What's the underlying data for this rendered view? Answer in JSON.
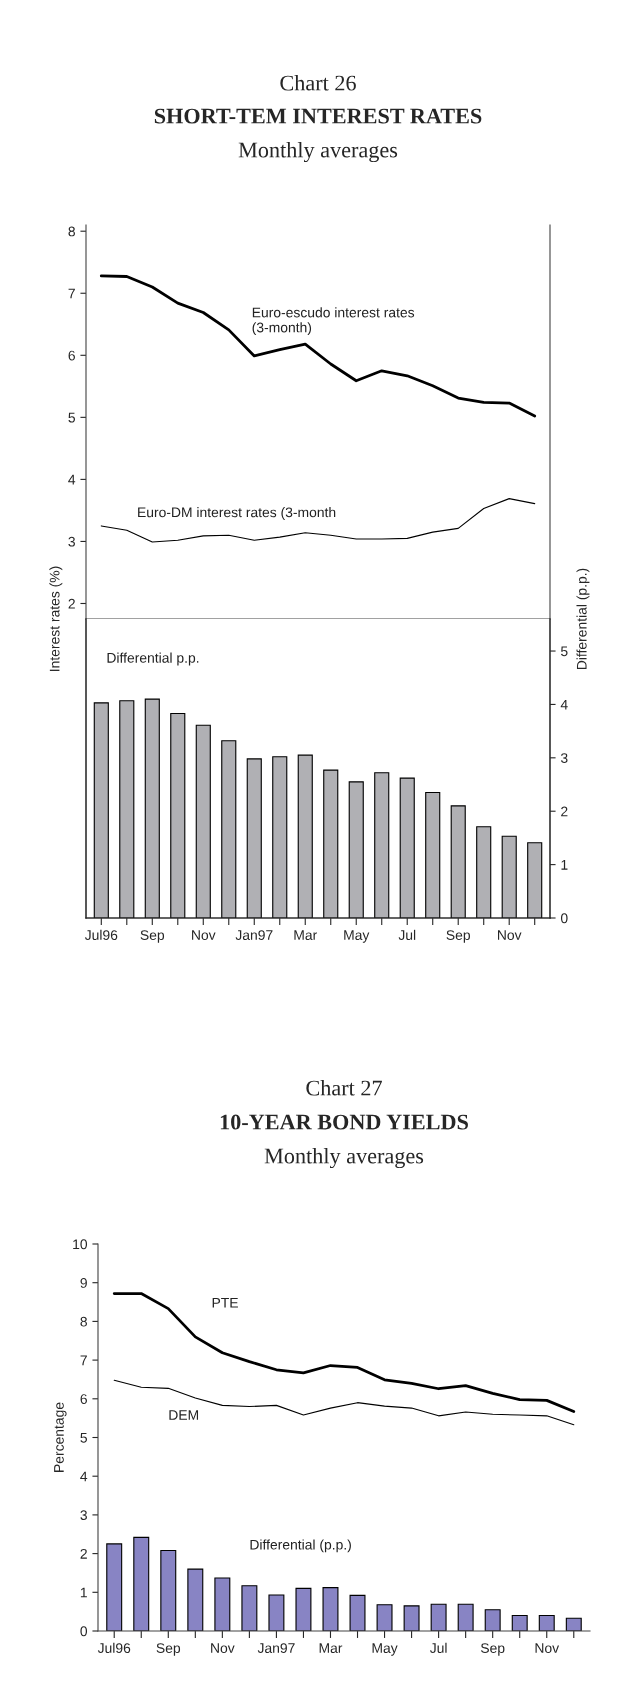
{
  "chart_data": [
    {
      "type": "line",
      "title": "Chart 26",
      "subtitle": "SHORT-TEM INTEREST RATES",
      "annotations": [
        "Monthly averages"
      ],
      "ylabel": "Interest rates (%)",
      "tick_labels": "y",
      "ylim": [
        1.75,
        8.1
      ],
      "yticks": [
        2,
        3,
        4,
        5,
        6,
        7,
        8
      ],
      "series": [
        {
          "name": "Euro-escudo interest rates\n(3-month)",
          "color": "#000000",
          "values": [
            7.28,
            7.27,
            7.1,
            6.84,
            6.69,
            6.41,
            5.99,
            6.09,
            6.18,
            5.86,
            5.59,
            5.75,
            5.67,
            5.51,
            5.31,
            5.24,
            5.23,
            5.02
          ]
        },
        {
          "name": "Euro-DM interest rates (3-month",
          "color": "#000000",
          "values": [
            3.25,
            3.18,
            2.99,
            3.02,
            3.09,
            3.1,
            3.02,
            3.07,
            3.14,
            3.1,
            3.04,
            3.04,
            3.05,
            3.15,
            3.21,
            3.53,
            3.69,
            3.61
          ]
        }
      ]
    },
    {
      "type": "bar",
      "y2label": "Differential (p.p.)",
      "categories": [
        "Jul96",
        null,
        "Sep",
        null,
        "Nov",
        null,
        "Jan97",
        null,
        "Mar",
        null,
        "May",
        null,
        "Jul",
        null,
        "Sep",
        null,
        "Nov",
        null
      ],
      "y2lim": [
        0,
        5.6
      ],
      "y2ticks": [
        0,
        1,
        2,
        3,
        4,
        5
      ],
      "series": [
        {
          "name": "Differential p.p.",
          "color": "#b0b0b4",
          "axis": "y2",
          "values": [
            4.03,
            4.07,
            4.1,
            3.83,
            3.61,
            3.32,
            2.98,
            3.02,
            3.05,
            2.77,
            2.55,
            2.72,
            2.62,
            2.35,
            2.1,
            1.71,
            1.53,
            1.41
          ]
        }
      ]
    },
    {
      "type": "line",
      "title": "Chart 27",
      "subtitle": "10-YEAR BOND YIELDS",
      "annotations": [
        "Monthly averages"
      ],
      "ylabel": "Percentage",
      "categories": [
        "Jul96",
        null,
        "Sep",
        null,
        "Nov",
        null,
        "Jan97",
        null,
        "Mar",
        null,
        "May",
        null,
        "Jul",
        null,
        "Sep",
        null,
        "Nov",
        null
      ],
      "ylim": [
        0,
        10
      ],
      "yticks": [
        0,
        1,
        2,
        3,
        4,
        5,
        6,
        7,
        8,
        9,
        10
      ],
      "series": [
        {
          "name": "PTE",
          "color": "#000000",
          "values": [
            8.72,
            8.72,
            8.33,
            7.6,
            7.19,
            6.96,
            6.75,
            6.67,
            6.86,
            6.81,
            6.49,
            6.4,
            6.26,
            6.34,
            6.14,
            5.98,
            5.96,
            5.67
          ]
        },
        {
          "name": "DEM",
          "color": "#000000",
          "values": [
            6.48,
            6.3,
            6.27,
            6.02,
            5.83,
            5.8,
            5.83,
            5.58,
            5.76,
            5.9,
            5.81,
            5.76,
            5.56,
            5.66,
            5.6,
            5.58,
            5.56,
            5.33
          ]
        },
        {
          "name": "Differential (p.p.)",
          "type": "bar",
          "color": "#8884c4",
          "values": [
            2.25,
            2.42,
            2.08,
            1.6,
            1.37,
            1.17,
            0.93,
            1.1,
            1.12,
            0.92,
            0.68,
            0.65,
            0.69,
            0.69,
            0.55,
            0.4,
            0.4,
            0.33
          ]
        }
      ]
    }
  ]
}
